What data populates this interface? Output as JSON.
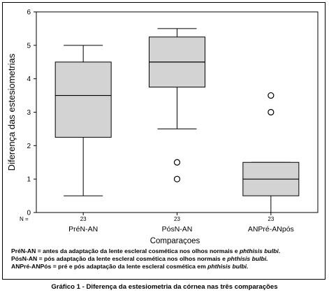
{
  "chart_data": {
    "type": "box",
    "ylabel": "Diferença das estesiometrias",
    "xlabel": "Comparaçoes",
    "ylim": [
      0,
      6
    ],
    "yticks": [
      0,
      1,
      2,
      3,
      4,
      5,
      6
    ],
    "n_label": "N =",
    "boxes": [
      {
        "category": "PréN-AN",
        "n": "23",
        "min": 0.5,
        "q1": 2.25,
        "median": 3.5,
        "q3": 4.5,
        "max": 5.0,
        "outliers": []
      },
      {
        "category": "PósN-AN",
        "n": "23",
        "min": 2.5,
        "q1": 3.75,
        "median": 4.5,
        "q3": 5.25,
        "max": 5.5,
        "outliers": [
          1.0,
          1.5
        ]
      },
      {
        "category": "ANPré-ANpós",
        "n": "23",
        "min": 0.0,
        "q1": 0.5,
        "median": 1.0,
        "q3": 1.5,
        "max": 1.5,
        "outliers": [
          3.0,
          3.5
        ]
      }
    ],
    "box_fill": "#d3d3d3",
    "grid": false
  },
  "legend": [
    {
      "term": "PréN-AN =",
      "text": " antes da adaptação da lente escleral cosmética nos olhos normais e ",
      "italic": "phthisis bulbi",
      "end": "."
    },
    {
      "term": "PósN-AN =",
      "text": " pós adaptação da lente escleral cosmética nos olhos normais e ",
      "italic": "phthisis bulbi.",
      "end": ""
    },
    {
      "term": "ANPré-ANPós =",
      "text": " pré e pós adaptação da lente escleral cosmética em ",
      "italic": "phthisis bulbi.",
      "end": ""
    }
  ],
  "caption": "Gráfico 1 - Diferença da estesiometria da córnea nas três comparações"
}
